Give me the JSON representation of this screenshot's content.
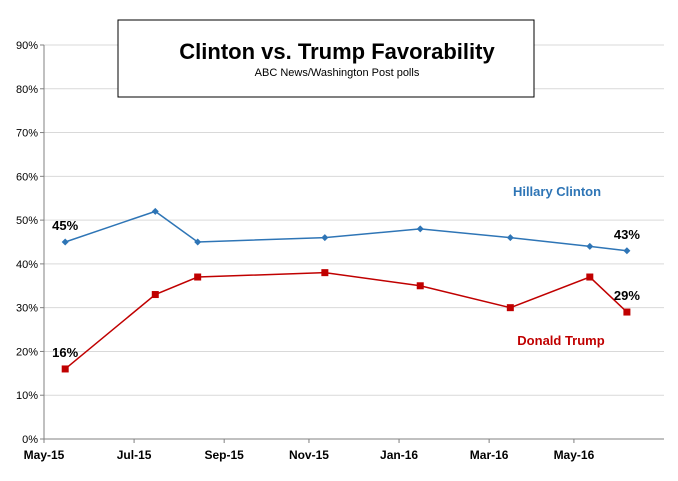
{
  "chart_data": {
    "type": "line",
    "title": "Clinton vs. Trump Favorability",
    "subtitle": "ABC News/Washington  Post polls",
    "xlabel": "",
    "ylabel": "",
    "ylim": [
      0,
      90
    ],
    "yticks": [
      0,
      10,
      20,
      30,
      40,
      50,
      60,
      70,
      80,
      90
    ],
    "ytick_labels": [
      "0%",
      "10%",
      "20%",
      "30%",
      "40%",
      "50%",
      "60%",
      "70%",
      "80%",
      "90%"
    ],
    "xlim": [
      2015.33,
      2016.5
    ],
    "xticks": [
      2015.33,
      2015.5,
      2015.67,
      2015.83,
      2016.0,
      2016.17,
      2016.33
    ],
    "xtick_labels": [
      "May-15",
      "Jul-15",
      "Sep-15",
      "Nov-15",
      "Jan-16",
      "Mar-16",
      "May-16"
    ],
    "grid": "horizontal",
    "series": [
      {
        "name": "Hillary Clinton",
        "color": "#2E75B6",
        "marker": "diamond",
        "x": [
          2015.37,
          2015.54,
          2015.62,
          2015.86,
          2016.04,
          2016.21,
          2016.36,
          2016.43
        ],
        "values": [
          45,
          52,
          45,
          46,
          48,
          46,
          44,
          43
        ],
        "labels": [
          {
            "index": 0,
            "text": "45%"
          },
          {
            "index": 7,
            "text": "43%"
          }
        ]
      },
      {
        "name": "Donald Trump",
        "color": "#C00000",
        "marker": "square",
        "x": [
          2015.37,
          2015.54,
          2015.62,
          2015.86,
          2016.04,
          2016.21,
          2016.36,
          2016.43
        ],
        "values": [
          16,
          33,
          37,
          38,
          35,
          30,
          37,
          29
        ],
        "labels": [
          {
            "index": 0,
            "text": "16%"
          },
          {
            "index": 7,
            "text": "29%"
          }
        ]
      }
    ]
  }
}
